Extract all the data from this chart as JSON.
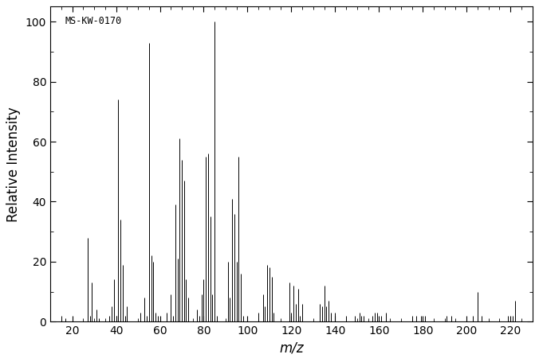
{
  "annotation": "MS-KW-0170",
  "xlabel": "m/z",
  "ylabel": "Relative Intensity",
  "xlim": [
    10,
    230
  ],
  "ylim": [
    0,
    105
  ],
  "xticks": [
    20,
    40,
    60,
    80,
    100,
    120,
    140,
    160,
    180,
    200,
    220
  ],
  "yticks": [
    0,
    20,
    40,
    60,
    80,
    100
  ],
  "peaks": [
    [
      15,
      2
    ],
    [
      17,
      1
    ],
    [
      27,
      28
    ],
    [
      28,
      2
    ],
    [
      29,
      13
    ],
    [
      31,
      4
    ],
    [
      32,
      1
    ],
    [
      37,
      2
    ],
    [
      38,
      5
    ],
    [
      39,
      14
    ],
    [
      40,
      2
    ],
    [
      41,
      74
    ],
    [
      42,
      34
    ],
    [
      43,
      19
    ],
    [
      44,
      2
    ],
    [
      45,
      5
    ],
    [
      51,
      3
    ],
    [
      53,
      8
    ],
    [
      54,
      2
    ],
    [
      55,
      93
    ],
    [
      56,
      22
    ],
    [
      57,
      20
    ],
    [
      58,
      3
    ],
    [
      59,
      2
    ],
    [
      63,
      3
    ],
    [
      65,
      9
    ],
    [
      66,
      2
    ],
    [
      67,
      39
    ],
    [
      68,
      21
    ],
    [
      69,
      61
    ],
    [
      70,
      54
    ],
    [
      71,
      47
    ],
    [
      72,
      14
    ],
    [
      73,
      8
    ],
    [
      77,
      4
    ],
    [
      78,
      2
    ],
    [
      79,
      9
    ],
    [
      80,
      14
    ],
    [
      81,
      55
    ],
    [
      82,
      56
    ],
    [
      83,
      35
    ],
    [
      84,
      9
    ],
    [
      85,
      100
    ],
    [
      86,
      2
    ],
    [
      91,
      20
    ],
    [
      92,
      8
    ],
    [
      93,
      41
    ],
    [
      94,
      36
    ],
    [
      95,
      20
    ],
    [
      96,
      55
    ],
    [
      97,
      16
    ],
    [
      98,
      2
    ],
    [
      105,
      3
    ],
    [
      107,
      9
    ],
    [
      108,
      5
    ],
    [
      109,
      19
    ],
    [
      110,
      18
    ],
    [
      111,
      15
    ],
    [
      112,
      3
    ],
    [
      119,
      13
    ],
    [
      120,
      3
    ],
    [
      121,
      12
    ],
    [
      122,
      6
    ],
    [
      123,
      11
    ],
    [
      124,
      2
    ],
    [
      125,
      6
    ],
    [
      133,
      6
    ],
    [
      134,
      5
    ],
    [
      135,
      12
    ],
    [
      136,
      5
    ],
    [
      137,
      7
    ],
    [
      138,
      3
    ],
    [
      140,
      3
    ],
    [
      145,
      2
    ],
    [
      149,
      2
    ],
    [
      151,
      3
    ],
    [
      152,
      2
    ],
    [
      153,
      2
    ],
    [
      157,
      2
    ],
    [
      158,
      3
    ],
    [
      159,
      3
    ],
    [
      161,
      2
    ],
    [
      163,
      3
    ],
    [
      175,
      2
    ],
    [
      177,
      2
    ],
    [
      179,
      2
    ],
    [
      181,
      2
    ],
    [
      191,
      2
    ],
    [
      193,
      2
    ],
    [
      203,
      2
    ],
    [
      205,
      10
    ],
    [
      207,
      2
    ],
    [
      219,
      2
    ],
    [
      221,
      2
    ],
    [
      222,
      7
    ]
  ],
  "line_color": "#000000",
  "bg_color": "#ffffff",
  "border_color": "#000000",
  "annotation_fontsize": 8.5,
  "label_fontsize": 12,
  "tick_fontsize": 10,
  "linewidth": 0.7
}
